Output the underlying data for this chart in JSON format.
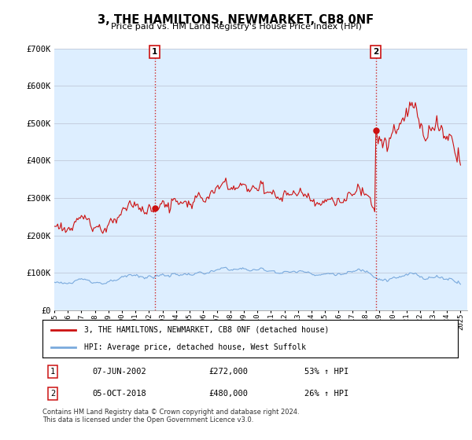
{
  "title": "3, THE HAMILTONS, NEWMARKET, CB8 0NF",
  "subtitle": "Price paid vs. HM Land Registry's House Price Index (HPI)",
  "ylim": [
    0,
    700000
  ],
  "yticks": [
    0,
    100000,
    200000,
    300000,
    400000,
    500000,
    600000,
    700000
  ],
  "ytick_labels": [
    "£0",
    "£100K",
    "£200K",
    "£300K",
    "£400K",
    "£500K",
    "£600K",
    "£700K"
  ],
  "hpi_color": "#7aaadd",
  "price_color": "#cc1111",
  "plot_bg_color": "#ddeeff",
  "annotation1": {
    "label": "1",
    "date": "07-JUN-2002",
    "price": "£272,000",
    "change": "53% ↑ HPI"
  },
  "annotation2": {
    "label": "2",
    "date": "05-OCT-2018",
    "price": "£480,000",
    "change": "26% ↑ HPI"
  },
  "legend_line1": "3, THE HAMILTONS, NEWMARKET, CB8 0NF (detached house)",
  "legend_line2": "HPI: Average price, detached house, West Suffolk",
  "footer": "Contains HM Land Registry data © Crown copyright and database right 2024.\nThis data is licensed under the Open Government Licence v3.0.",
  "background_color": "#ffffff",
  "grid_color": "#c0c8d8"
}
